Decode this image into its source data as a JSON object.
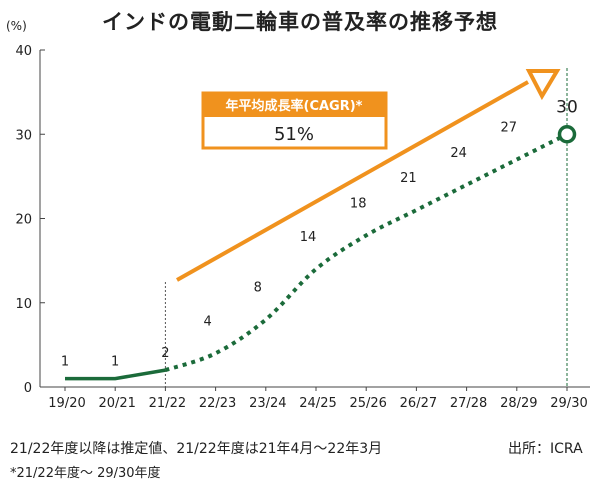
{
  "title": "インドの電動二輪車の普及率の推移予想",
  "chart_data": {
    "type": "line",
    "y_unit": "(%)",
    "ylim": [
      0,
      40
    ],
    "yticks": [
      0,
      10,
      20,
      30,
      40
    ],
    "categories": [
      "19/20",
      "20/21",
      "21/22",
      "22/23",
      "23/24",
      "24/25",
      "25/26",
      "26/27",
      "27/28",
      "28/29",
      "29/30"
    ],
    "values": [
      1,
      1,
      2,
      4,
      8,
      14,
      18,
      21,
      24,
      27,
      30
    ],
    "labels": [
      "1",
      "1",
      "2",
      "4",
      "8",
      "14",
      "18",
      "21",
      "24",
      "27",
      "30"
    ],
    "actual_through_index": 2,
    "estimate_from_index": 2,
    "series_style": {
      "actual": "solid",
      "estimate": "dotted"
    },
    "line_color": "#1b6b3a",
    "cagr_label": "年平均成長率(CAGR)*",
    "cagr_value": "51%",
    "cagr_color": "#f0921e",
    "grid": false
  },
  "notes": {
    "estimate_note": "21/22年度以降は推定値、21/22年度は21年4月～22年3月",
    "source": "出所：ICRA",
    "footnote": "*21/22年度～ 29/30年度"
  }
}
